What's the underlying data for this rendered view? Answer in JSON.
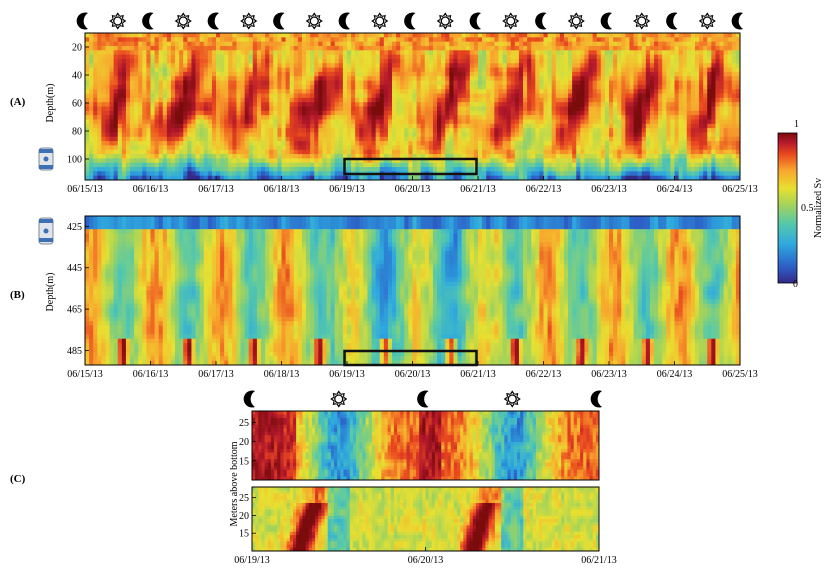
{
  "chart_data": [
    {
      "type": "heatmap",
      "panel_label": "(A)",
      "ylabel": "Depth(m)",
      "y_ticks": [
        20,
        40,
        60,
        80,
        100
      ],
      "ylim": [
        10,
        115
      ],
      "x_ticks": [
        "06/15/13",
        "06/16/13",
        "06/17/13",
        "06/18/13",
        "06/19/13",
        "06/20/13",
        "06/21/13",
        "06/22/13",
        "06/23/13",
        "06/24/13",
        "06/25/13"
      ],
      "xlim_days": [
        0,
        10
      ],
      "day_night_symbols": [
        "moon",
        "sun",
        "moon",
        "sun",
        "moon",
        "sun",
        "moon",
        "sun",
        "moon",
        "sun",
        "moon",
        "sun",
        "moon",
        "sun",
        "moon",
        "sun",
        "moon",
        "sun",
        "moon",
        "sun",
        "moon"
      ],
      "highlight_box_days": [
        4,
        6
      ],
      "highlight_box_depth": [
        99,
        112
      ],
      "instrument_icon": "shallow-instrument-icon"
    },
    {
      "type": "heatmap",
      "panel_label": "(B)",
      "ylabel": "Depth(m)",
      "y_ticks": [
        425,
        445,
        465,
        485
      ],
      "ylim": [
        420,
        492
      ],
      "x_ticks": [
        "06/15/13",
        "06/16/13",
        "06/17/13",
        "06/18/13",
        "06/19/13",
        "06/20/13",
        "06/21/13",
        "06/22/13",
        "06/23/13",
        "06/24/13",
        "06/25/13"
      ],
      "xlim_days": [
        0,
        10
      ],
      "highlight_box_days": [
        4,
        6
      ],
      "highlight_box_depth": [
        485,
        492
      ],
      "instrument_icon": "deep-instrument-icon"
    },
    {
      "type": "heatmap",
      "panel_label": "(C)",
      "ylabel": "Meters above bottom",
      "top_y_ticks": [
        25,
        20,
        15
      ],
      "bottom_y_ticks": [
        25,
        20,
        15
      ],
      "ylim": [
        10,
        28
      ],
      "x_ticks": [
        "06/19/13",
        "06/20/13",
        "06/21/13"
      ],
      "xlim_days": [
        0,
        2
      ],
      "day_night_symbols": [
        "moon",
        "sun",
        "moon",
        "sun",
        "moon"
      ]
    }
  ],
  "colorbar": {
    "label": "Normalized Sv",
    "ticks": [
      "1",
      "0.5",
      "0"
    ],
    "tick_values": [
      1,
      0.5,
      0
    ],
    "stops": [
      "#352a87",
      "#2c5fc7",
      "#2ea9df",
      "#58c9a8",
      "#a3d35b",
      "#e8e031",
      "#f8a62d",
      "#e8471f",
      "#b2182b",
      "#7a0c0c"
    ]
  }
}
